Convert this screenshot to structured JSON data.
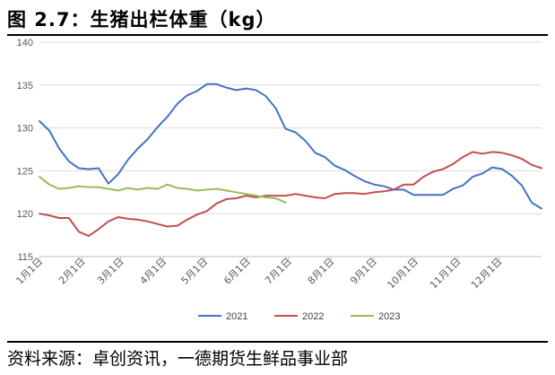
{
  "figure": {
    "title": "图 2.7：生猪出栏体重（kg）",
    "source": "资料来源：卓创资讯，一德期货生鲜品事业部"
  },
  "chart_data": {
    "type": "line",
    "title": "",
    "xlabel": "",
    "ylabel": "",
    "ylim": [
      115,
      140
    ],
    "yticks": [
      115,
      120,
      125,
      130,
      135,
      140
    ],
    "grid": "horizontal",
    "legend_position": "bottom",
    "x_ticks": [
      "1月1日",
      "2月1日",
      "3月1日",
      "4月1日",
      "5月1日",
      "6月1日",
      "7月1日",
      "8月1日",
      "9月1日",
      "10月1日",
      "11月1日",
      "12月1日"
    ],
    "weeks_per_year": 52,
    "series": [
      {
        "name": "2021",
        "color": "#4472C4",
        "values": [
          130.8,
          129.7,
          127.6,
          126.1,
          125.3,
          125.2,
          125.3,
          123.5,
          124.6,
          126.3,
          127.6,
          128.7,
          130.1,
          131.3,
          132.8,
          133.8,
          134.3,
          135.1,
          135.1,
          134.7,
          134.4,
          134.6,
          134.4,
          133.7,
          132.3,
          129.9,
          129.5,
          128.5,
          127.1,
          126.6,
          125.6,
          125.1,
          124.4,
          123.8,
          123.4,
          123.2,
          122.8,
          122.8,
          122.2,
          122.2,
          122.2,
          122.2,
          122.9,
          123.3,
          124.3,
          124.7,
          125.4,
          125.2,
          124.4,
          123.3,
          121.3,
          120.6
        ]
      },
      {
        "name": "2022",
        "color": "#C0504D",
        "values": [
          120.0,
          119.8,
          119.5,
          119.5,
          117.9,
          117.4,
          118.2,
          119.1,
          119.6,
          119.4,
          119.3,
          119.1,
          118.8,
          118.5,
          118.6,
          119.3,
          119.9,
          120.3,
          121.2,
          121.7,
          121.8,
          122.1,
          121.9,
          122.1,
          122.1,
          122.1,
          122.3,
          122.1,
          121.9,
          121.8,
          122.3,
          122.4,
          122.4,
          122.3,
          122.5,
          122.6,
          122.8,
          123.4,
          123.4,
          124.3,
          124.9,
          125.2,
          125.8,
          126.6,
          127.2,
          127.0,
          127.2,
          127.1,
          126.8,
          126.4,
          125.7,
          125.3
        ]
      },
      {
        "name": "2023",
        "color": "#9BBB59",
        "values": [
          124.3,
          123.4,
          122.9,
          123.0,
          123.2,
          123.1,
          123.1,
          122.9,
          122.7,
          123.0,
          122.8,
          123.0,
          122.9,
          123.4,
          123.0,
          122.9,
          122.7,
          122.8,
          122.9,
          122.7,
          122.5,
          122.3,
          122.1,
          121.9,
          121.8,
          121.3
        ]
      }
    ]
  }
}
